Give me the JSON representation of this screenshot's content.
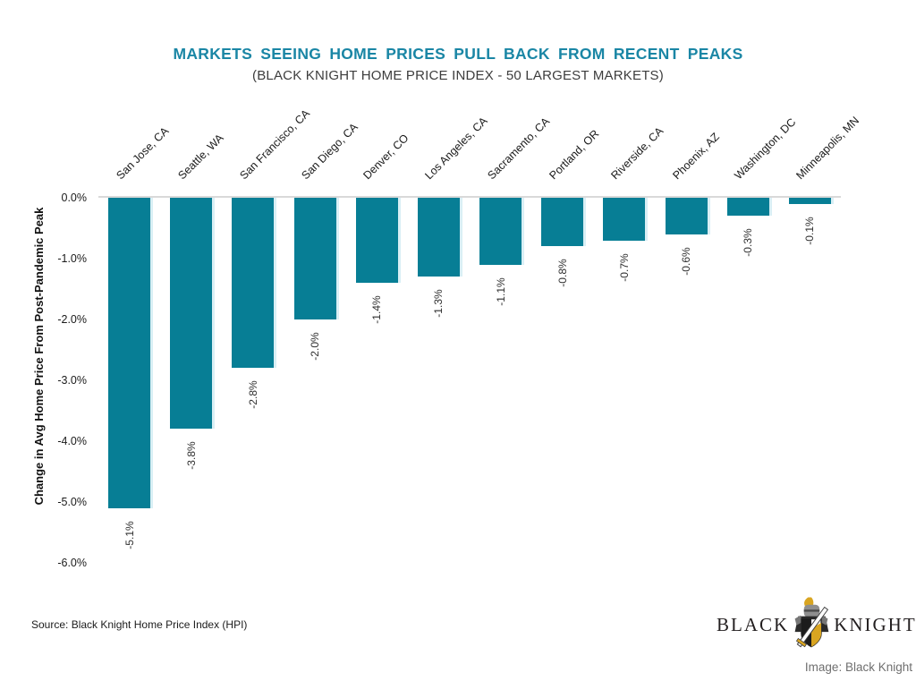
{
  "header": {
    "title": "MARKETS SEEING HOME PRICES PULL BACK FROM RECENT PEAKS",
    "subtitle": "(BLACK KNIGHT HOME PRICE INDEX - 50 LARGEST MARKETS)"
  },
  "colors": {
    "title_teal": "#1a86a5",
    "bar_teal": "#077e95",
    "zero_line_gray": "#d9d9d9",
    "logo_gold": "#d9a521",
    "logo_black": "#231f20"
  },
  "chart_data": {
    "type": "bar",
    "title": "MARKETS SEEING HOME PRICES PULL BACK FROM RECENT PEAKS",
    "subtitle": "(BLACK KNIGHT HOME PRICE INDEX - 50 LARGEST MARKETS)",
    "categories": [
      "San Jose, CA",
      "Seattle, WA",
      "San Francisco, CA",
      "San Diego, CA",
      "Denver, CO",
      "Los Angeles, CA",
      "Sacramento, CA",
      "Portland, OR",
      "Riverside, CA",
      "Phoenix, AZ",
      "Washington, DC",
      "Minneapolis, MN"
    ],
    "values": [
      -5.1,
      -3.8,
      -2.8,
      -2.0,
      -1.4,
      -1.3,
      -1.1,
      -0.8,
      -0.7,
      -0.6,
      -0.3,
      -0.1
    ],
    "data_labels": [
      "-5.1%",
      "-3.8%",
      "-2.8%",
      "-2.0%",
      "-1.4%",
      "-1.3%",
      "-1.1%",
      "-0.8%",
      "-0.7%",
      "-0.6%",
      "-0.3%",
      "-0.1%"
    ],
    "xlabel": "",
    "ylabel": "Change in Avg Home Price From Post-Pandemic Peak",
    "yticks": [
      "0.0%",
      "-1.0%",
      "-2.0%",
      "-3.0%",
      "-4.0%",
      "-5.0%",
      "-6.0%"
    ],
    "ylim": [
      -6.0,
      0.0
    ],
    "grid": false,
    "legend": "none",
    "bar_color": "#077e95"
  },
  "footer": {
    "source_note": "Source: Black Knight Home Price Index (HPI)",
    "image_credit": "Image: Black Knight"
  },
  "logo": {
    "left_word": "BLACK",
    "right_word": "KNIGHT",
    "registered_mark": "®"
  }
}
